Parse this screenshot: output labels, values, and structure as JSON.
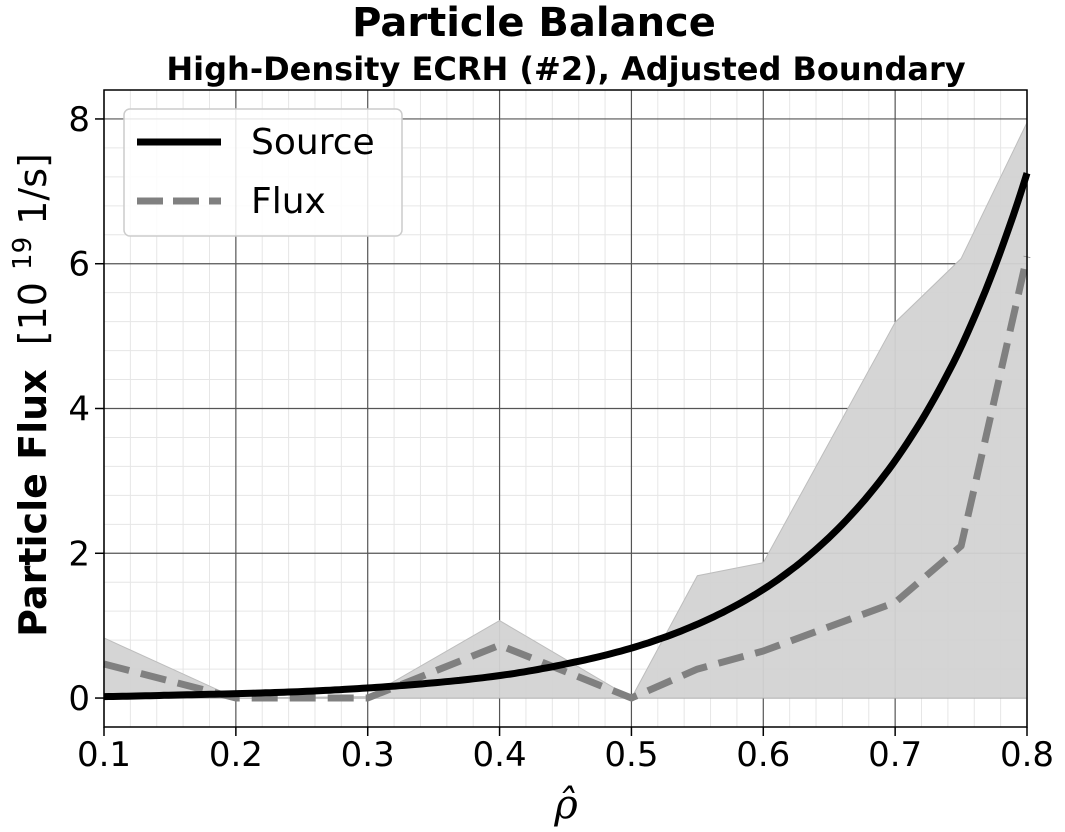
{
  "chart_data": {
    "type": "line",
    "title": "Particle Balance",
    "subtitle": "High-Density ECRH (#2), Adjusted Boundary",
    "xlabel": "ρ̂",
    "ylabel_bold": "Particle Flux",
    "ylabel_unit_pre": "[10",
    "ylabel_unit_exp": "19",
    "ylabel_unit_post": " 1/s]",
    "xlim": [
      0.1,
      0.8
    ],
    "ylim": [
      -0.4,
      8.4
    ],
    "xticks": [
      0.1,
      0.2,
      0.3,
      0.4,
      0.5,
      0.6,
      0.7,
      0.8
    ],
    "xtick_labels": [
      "0.1",
      "0.2",
      "0.3",
      "0.4",
      "0.5",
      "0.6",
      "0.7",
      "0.8"
    ],
    "yticks": [
      0,
      2,
      4,
      6,
      8
    ],
    "ytick_labels": [
      "0",
      "2",
      "4",
      "6",
      "8"
    ],
    "grid": true,
    "legend_position": "top-left",
    "series": [
      {
        "name": "Source",
        "style": "solid",
        "color": "#000000",
        "x": [
          0.1,
          0.15,
          0.2,
          0.25,
          0.3,
          0.35,
          0.4,
          0.45,
          0.5,
          0.55,
          0.6,
          0.65,
          0.7,
          0.75,
          0.8
        ],
        "y": [
          0.02,
          0.04,
          0.06,
          0.09,
          0.14,
          0.21,
          0.31,
          0.47,
          0.69,
          1.02,
          1.5,
          2.22,
          3.28,
          4.85,
          7.25
        ]
      },
      {
        "name": "Flux",
        "style": "dashed",
        "color": "#808080",
        "x": [
          0.1,
          0.2,
          0.25,
          0.3,
          0.4,
          0.5,
          0.55,
          0.6,
          0.7,
          0.75,
          0.8
        ],
        "y": [
          0.47,
          0.0,
          0.0,
          0.0,
          0.73,
          0.0,
          0.4,
          0.65,
          1.32,
          2.1,
          6.1
        ]
      }
    ],
    "band": {
      "color": "#d3d3d3",
      "x": [
        0.1,
        0.2,
        0.3,
        0.4,
        0.5,
        0.55,
        0.6,
        0.7,
        0.75,
        0.8
      ],
      "upper": [
        0.83,
        0.0,
        0.02,
        1.07,
        0.0,
        1.69,
        1.87,
        5.19,
        6.07,
        7.95
      ],
      "lower": [
        0.0,
        0.0,
        0.0,
        0.0,
        0.0,
        0.0,
        0.0,
        0.0,
        0.0,
        0.0
      ]
    }
  }
}
